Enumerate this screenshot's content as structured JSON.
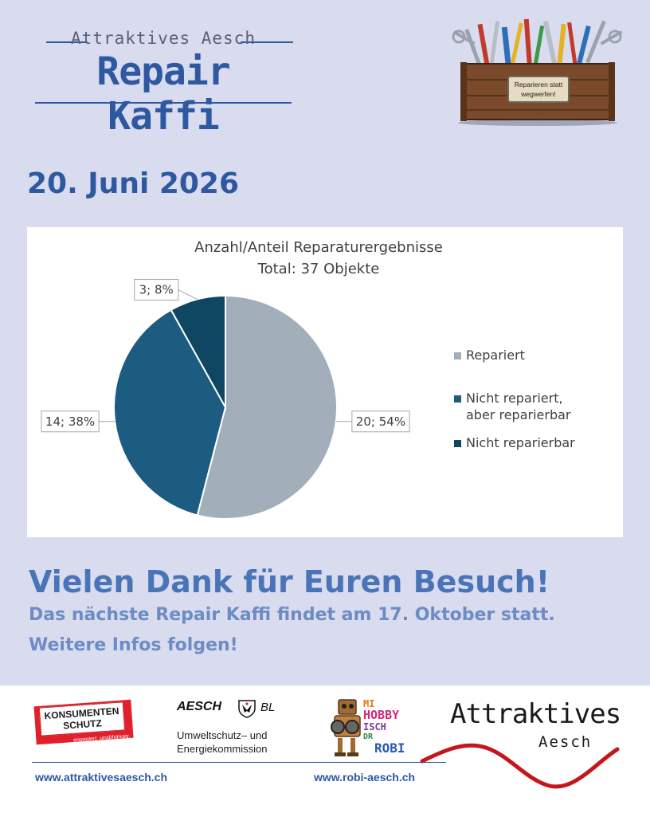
{
  "header": {
    "logo_top": "Attraktives Aesch",
    "logo_main": "Repair Kaffi",
    "toolbox_sign": [
      "Reparieren statt",
      "wegwerfen!"
    ]
  },
  "date": "20. Juni 2026",
  "chart_data": {
    "type": "pie",
    "title": "Anzahl/Anteil Reparaturergebnisse",
    "subtitle": "Total: 37 Objekte",
    "categories": [
      "Repariert",
      "Nicht repariert, aber reparierbar",
      "Nicht reparierbar"
    ],
    "legend_lines": [
      [
        "Repariert"
      ],
      [
        "Nicht repariert,",
        "aber reparierbar"
      ],
      [
        "Nicht reparierbar"
      ]
    ],
    "values": [
      20,
      14,
      3
    ],
    "percentages": [
      54,
      38,
      8
    ],
    "data_labels": [
      "20; 54%",
      "14; 38%",
      "3; 8%"
    ],
    "colors": [
      "#a3aebb",
      "#1b5c80",
      "#0f4763"
    ],
    "legend_position": "right"
  },
  "thanks": "Vielen Dank für Euren Besuch!",
  "next_event": "Das nächste Repair Kaffi findet am 17. Oktober statt.",
  "more_info": "Weitere Infos folgen!",
  "footer": {
    "konsumentenschutz": [
      "KONSUMENTEN",
      "SCHUTZ"
    ],
    "konsumentenschutz_tag": "engagiert. unabhängig.",
    "aesch_title": "AESCH",
    "aesch_canton": "BL",
    "aesch_sub": [
      "Umweltschutz– und",
      "Energiekommission"
    ],
    "robi": {
      "mi": "MI",
      "hobby": "HOBBY",
      "isch": "ISCH",
      "dr": "DR",
      "robi": "ROBI"
    },
    "attraktives": "Attraktives",
    "aesch": "Aesch",
    "url_left": "www.attraktivesaesch.ch",
    "url_right": "www.robi-aesch.ch"
  }
}
